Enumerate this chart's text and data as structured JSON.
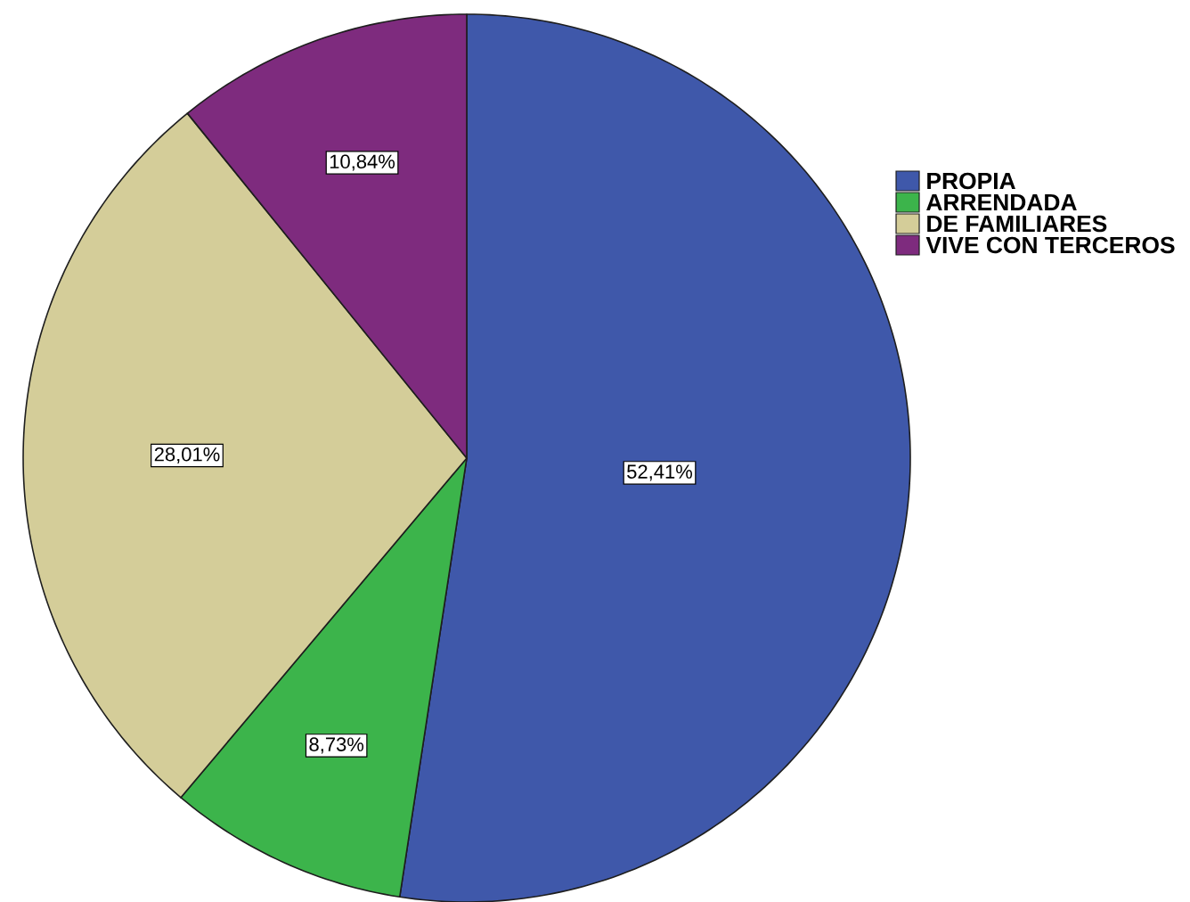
{
  "chart_data": {
    "type": "pie",
    "categories": [
      "PROPIA",
      "ARRENDADA",
      "DE FAMILIARES",
      "VIVE CON TERCEROS"
    ],
    "values": [
      52.41,
      8.73,
      28.01,
      10.84
    ],
    "colors": [
      "#3f58aa",
      "#3cb44b",
      "#d4cd99",
      "#7e2b7e"
    ],
    "value_labels": [
      "52,41%",
      "8,73%",
      "28,01%",
      "10,84%"
    ],
    "legend": "top right"
  }
}
